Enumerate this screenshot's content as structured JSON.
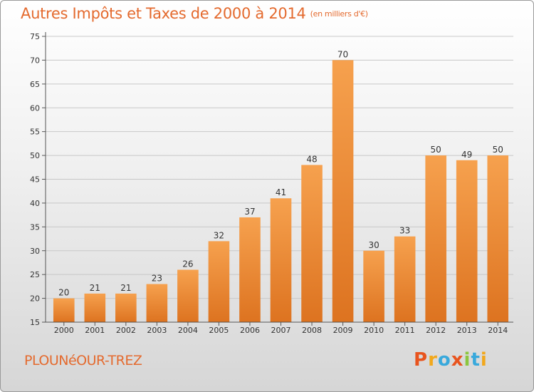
{
  "chart_data": {
    "type": "bar",
    "title": "Autres Impôts et Taxes de 2000 à 2014",
    "subtitle": "(en milliers d'€)",
    "categories": [
      "2000",
      "2001",
      "2002",
      "2003",
      "2004",
      "2005",
      "2006",
      "2007",
      "2008",
      "2009",
      "2010",
      "2011",
      "2012",
      "2013",
      "2014"
    ],
    "values": [
      20,
      21,
      21,
      23,
      26,
      32,
      37,
      41,
      48,
      70,
      30,
      33,
      50,
      49,
      50
    ],
    "ylim": [
      15,
      75
    ],
    "yticks": [
      15,
      20,
      25,
      30,
      35,
      40,
      45,
      50,
      55,
      60,
      65,
      70,
      75
    ],
    "grid": true,
    "bar_color": "#f0913a"
  },
  "footer": {
    "commune": "PLOUNéOUR-TREZ",
    "logo_text": "Proxiti",
    "logo_colors": [
      "#e8541e",
      "#f2a81c",
      "#39a9dc",
      "#e8541e",
      "#8cc63f",
      "#39a9dc",
      "#f2a81c"
    ]
  }
}
